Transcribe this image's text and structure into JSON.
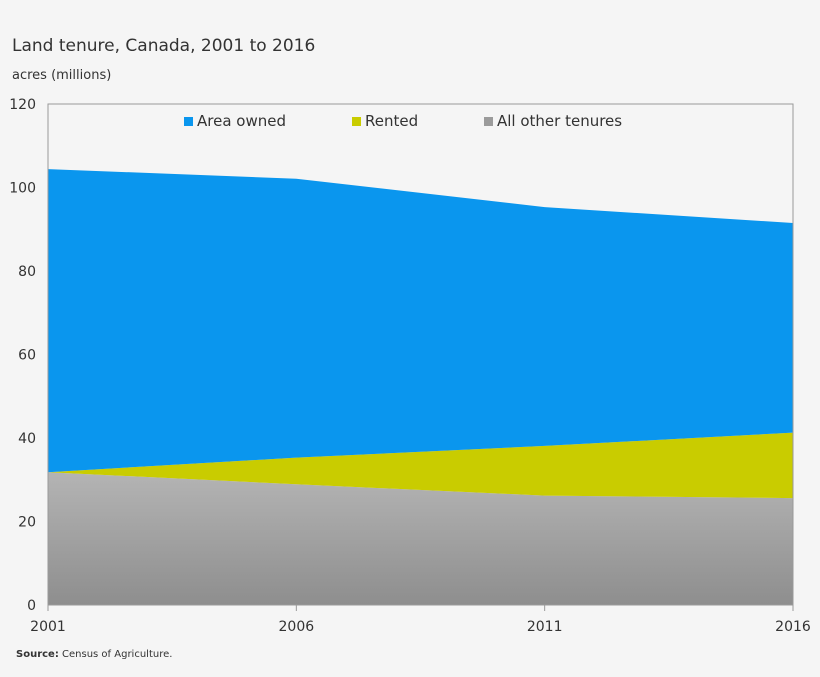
{
  "chart_data": {
    "type": "area",
    "stacked": true,
    "title": "Land tenure, Canada, 2001 to 2016",
    "ylabel": "acres (millions)",
    "xlabel": "",
    "categories": [
      "2001",
      "2006",
      "2011",
      "2016"
    ],
    "ylim": [
      0,
      120
    ],
    "yticks": [
      "0",
      "20",
      "40",
      "60",
      "80",
      "100",
      "120"
    ],
    "series": [
      {
        "name": "All other tenures",
        "values": [
          31.8,
          28.9,
          26.2,
          25.6
        ],
        "color": "#9b9b9b"
      },
      {
        "name": "Rented",
        "values": [
          0.0,
          6.4,
          11.9,
          15.7
        ],
        "color": "#c9cc00"
      },
      {
        "name": "Area owned",
        "values": [
          72.6,
          66.8,
          57.2,
          50.2
        ],
        "color": "#0a96ee"
      }
    ],
    "legend": [
      "Area owned",
      "Rented",
      "All other tenures"
    ],
    "legend_position": "top"
  },
  "footer": {
    "source_label": "Source:",
    "source_text": " Census of Agriculture."
  }
}
